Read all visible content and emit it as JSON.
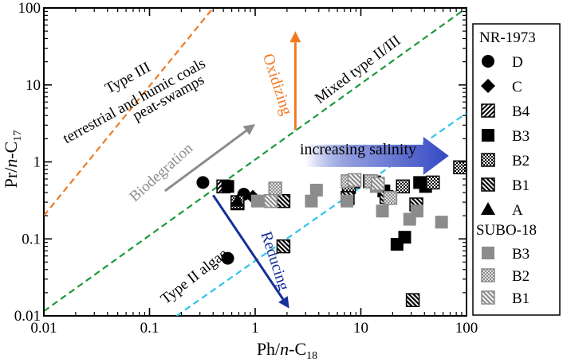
{
  "chart_data": {
    "type": "scatter",
    "xscale": "log",
    "yscale": "log",
    "xlim": [
      0.01,
      100
    ],
    "ylim": [
      0.01,
      100
    ],
    "xlabel_parts": [
      "Ph/",
      "n",
      "-C",
      "18"
    ],
    "ylabel_parts": [
      "Pr/",
      "n",
      "-C",
      "17"
    ],
    "x_ticks": [
      0.01,
      0.1,
      1,
      10,
      100
    ],
    "x_tick_labels": [
      "0.01",
      "0.1",
      "1",
      "10",
      "100"
    ],
    "y_ticks": [
      0.01,
      0.1,
      1,
      10,
      100
    ],
    "y_tick_labels": [
      "0.01",
      "0.1",
      "1",
      "10",
      "100"
    ],
    "annotations": {
      "type3_title": "Type III",
      "type3_line2": "terrestrial and humic coals",
      "type3_line3": "peat-swamps",
      "mixed": "Mixed type II/III",
      "type2": "Type II algae",
      "oxidizing": "Oxidizing",
      "reducing": "Reducing",
      "biodegration": "Biodegration",
      "salinity": "increasing salinity"
    },
    "colors": {
      "orange": "#f07a22",
      "green": "#1a9a3a",
      "cyan": "#2fc4ea",
      "navy": "#17309a",
      "gray": "#8c8c8c",
      "black": "#000000"
    },
    "legend": {
      "group1_title": "NR-1973",
      "group1_items": [
        {
          "label": "D",
          "marker": "circle"
        },
        {
          "label": "C",
          "marker": "diamond"
        },
        {
          "label": "B4",
          "marker": "hatch-square"
        },
        {
          "label": "B3",
          "marker": "square"
        },
        {
          "label": "B2",
          "marker": "checker-square"
        },
        {
          "label": "B1",
          "marker": "hatch2-square"
        },
        {
          "label": "A",
          "marker": "triangle"
        }
      ],
      "group2_title": "SUBO-18",
      "group2_items": [
        {
          "label": "B3",
          "marker": "gray-square"
        },
        {
          "label": "B2",
          "marker": "gray-checker-square"
        },
        {
          "label": "B1",
          "marker": "gray-hatch-square"
        }
      ]
    },
    "series": [
      {
        "name": "NR-1973 D",
        "marker": "circle",
        "points": [
          [
            0.32,
            0.54
          ],
          [
            0.55,
            0.056
          ],
          [
            0.78,
            0.38
          ]
        ]
      },
      {
        "name": "NR-1973 C",
        "marker": "diamond",
        "points": [
          [
            0.95,
            0.35
          ]
        ]
      },
      {
        "name": "NR-1973 B4",
        "marker": "hatch-square",
        "points": [
          [
            0.5,
            0.48
          ],
          [
            0.68,
            0.29
          ],
          [
            8.5,
            0.56
          ],
          [
            12.2,
            0.56
          ]
        ]
      },
      {
        "name": "NR-1973 B3",
        "marker": "square",
        "points": [
          [
            0.55,
            0.48
          ],
          [
            13.5,
            0.55
          ],
          [
            16.5,
            0.42
          ],
          [
            22,
            0.085
          ],
          [
            26,
            0.105
          ],
          [
            36,
            0.54
          ],
          [
            41,
            0.48
          ]
        ]
      },
      {
        "name": "NR-1973 B2",
        "marker": "checker-square",
        "points": [
          [
            0.68,
            0.3
          ],
          [
            7.7,
            0.47
          ],
          [
            8.4,
            0.56
          ],
          [
            25,
            0.48
          ],
          [
            48,
            0.54
          ],
          [
            87,
            0.85
          ]
        ]
      },
      {
        "name": "NR-1973 B1",
        "marker": "hatch2-square",
        "points": [
          [
            1.85,
            0.31
          ],
          [
            1.85,
            0.08
          ],
          [
            7.5,
            0.34
          ],
          [
            17.5,
            0.35
          ],
          [
            33.5,
            0.28
          ],
          [
            31,
            0.016
          ]
        ]
      },
      {
        "name": "NR-1973 A",
        "marker": "triangle",
        "points": [
          [
            0.68,
            0.31
          ]
        ]
      },
      {
        "name": "SUBO-18 B3",
        "marker": "gray-square",
        "points": [
          [
            1.05,
            0.31
          ],
          [
            3.4,
            0.31
          ],
          [
            3.8,
            0.43
          ],
          [
            7.4,
            0.31
          ],
          [
            14,
            0.48
          ],
          [
            16,
            0.23
          ],
          [
            29,
            0.18
          ],
          [
            34,
            0.23
          ],
          [
            58,
            0.165
          ]
        ]
      },
      {
        "name": "SUBO-18 B2",
        "marker": "gray-checker-square",
        "points": [
          [
            1.55,
            0.45
          ],
          [
            7.5,
            0.56
          ],
          [
            12.5,
            0.56
          ],
          [
            19,
            0.34
          ]
        ]
      },
      {
        "name": "SUBO-18 B1",
        "marker": "gray-hatch-square",
        "points": [
          [
            1.4,
            0.31
          ],
          [
            8.7,
            0.58
          ],
          [
            14.5,
            0.52
          ]
        ]
      }
    ],
    "reference_lines": [
      {
        "name": "type-III-boundary",
        "color": "orange",
        "from": [
          0.01,
          0.2
        ],
        "to": [
          0.4,
          100
        ]
      },
      {
        "name": "mixed-boundary",
        "color": "green",
        "from": [
          0.01,
          0.0115
        ],
        "to": [
          100,
          100
        ]
      },
      {
        "name": "type-II-boundary",
        "color": "cyan",
        "from": [
          0.18,
          0.01
        ],
        "to": [
          100,
          4.3
        ]
      }
    ],
    "arrows": [
      {
        "name": "oxidizing-arrow",
        "color": "orange",
        "from": [
          2.4,
          2.6
        ],
        "to": [
          2.4,
          50
        ]
      },
      {
        "name": "reducing-arrow",
        "color": "navy",
        "from": [
          0.4,
          0.37
        ],
        "to": [
          2.1,
          0.0125
        ]
      },
      {
        "name": "biodegration-arrow",
        "color": "gray",
        "from": [
          0.14,
          0.42
        ],
        "to": [
          1.0,
          3.1
        ]
      },
      {
        "name": "salinity-arrow",
        "color": "navy",
        "from": [
          3.0,
          1.2
        ],
        "to": [
          68,
          1.2
        ]
      }
    ]
  }
}
